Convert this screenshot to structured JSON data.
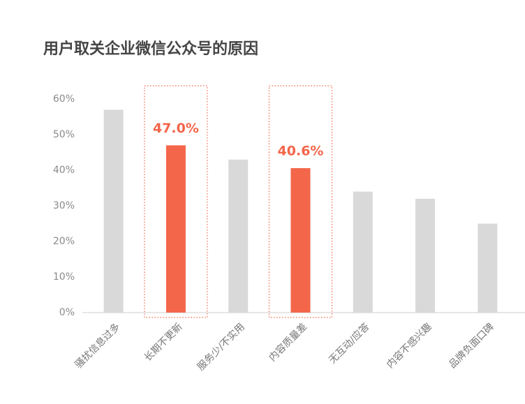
{
  "chart_data": {
    "type": "bar",
    "title": "用户取关企业微信公众号的原因",
    "categories": [
      "骚扰信息过多",
      "长期不更新",
      "服务少/不实用",
      "内容质量差",
      "无互动/应答",
      "内容不感兴趣",
      "品牌负面口碑"
    ],
    "values": [
      57,
      47.0,
      43,
      40.6,
      34,
      32,
      25
    ],
    "value_labels": [
      null,
      "47.0%",
      null,
      "40.6%",
      null,
      null,
      null
    ],
    "colors": [
      "#d9d9d9",
      "#f4664a",
      "#d9d9d9",
      "#f4664a",
      "#d9d9d9",
      "#d9d9d9",
      "#d9d9d9"
    ],
    "ylim": [
      0,
      60
    ],
    "yticks": [
      {
        "value": 0,
        "label": "0%"
      },
      {
        "value": 10,
        "label": "10%"
      },
      {
        "value": 20,
        "label": "20%"
      },
      {
        "value": 30,
        "label": "30%"
      },
      {
        "value": 40,
        "label": "40%"
      },
      {
        "value": 50,
        "label": "50%"
      },
      {
        "value": 60,
        "label": "60%"
      }
    ],
    "grid": false
  }
}
